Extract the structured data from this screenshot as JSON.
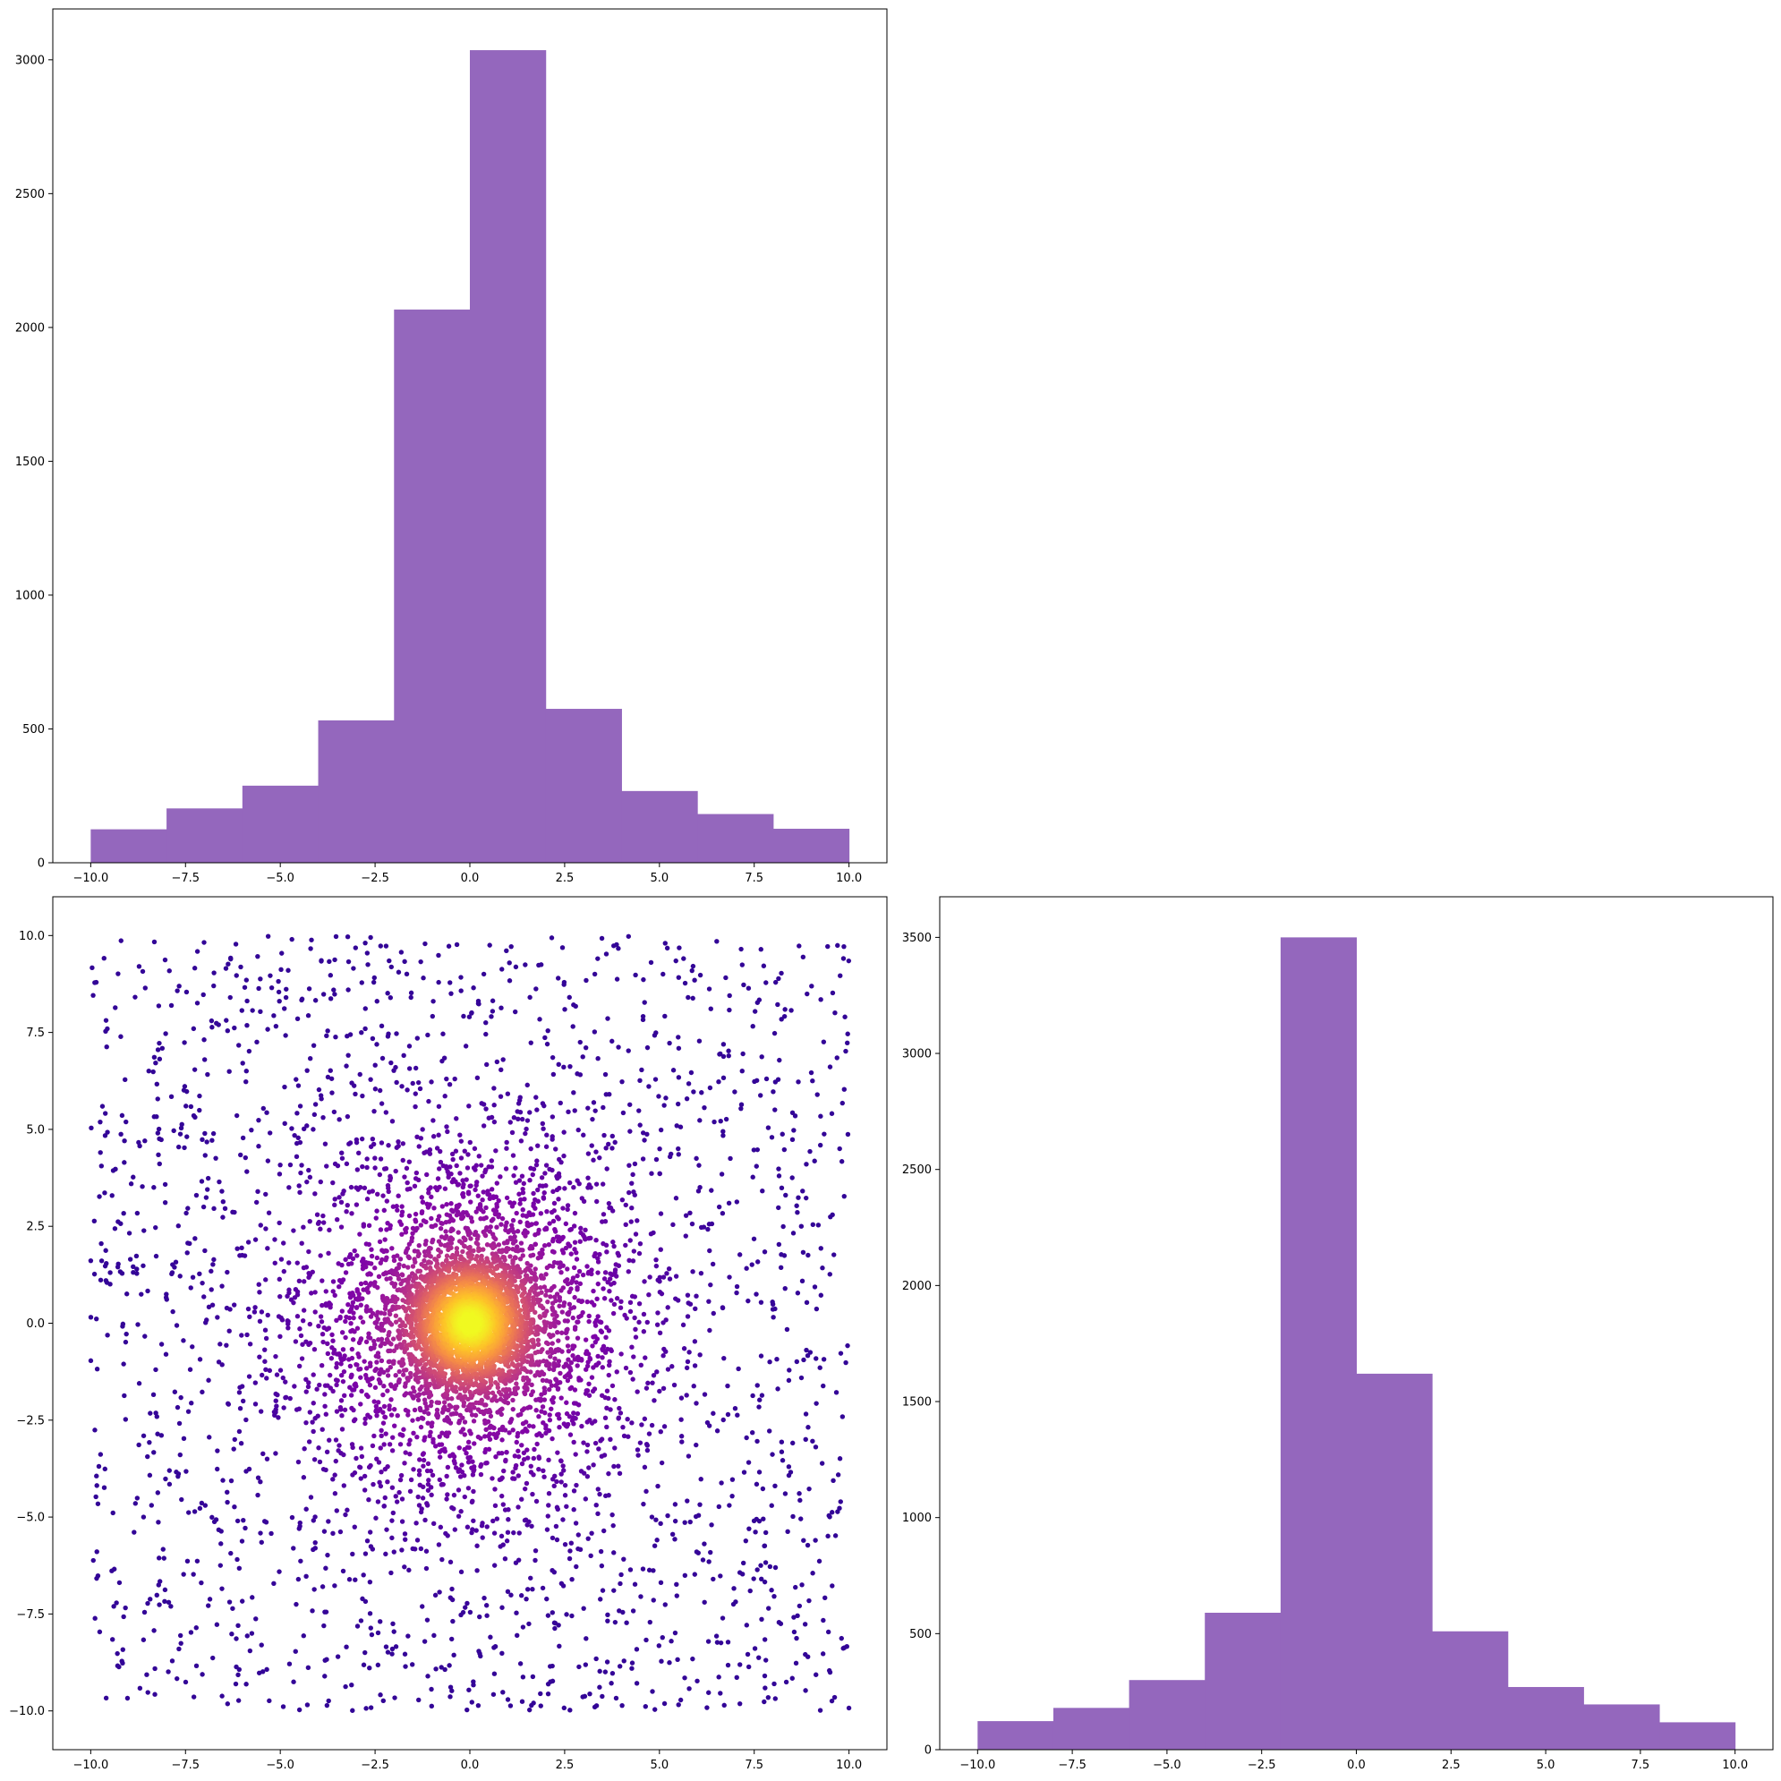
{
  "colors": {
    "bar_fill": "#9467bd",
    "axis": "#000000",
    "scatter_colormap": "plasma"
  },
  "chart_data": [
    {
      "type": "bar",
      "panel": "top-left",
      "title": "",
      "xlabel": "",
      "ylabel": "",
      "xlim": [
        -11.0,
        11.0
      ],
      "ylim": [
        0,
        3190
      ],
      "x_ticks": [
        -10.0,
        -7.5,
        -5.0,
        -2.5,
        0.0,
        2.5,
        5.0,
        7.5,
        10.0
      ],
      "x_tick_labels": [
        "−10.0",
        "−7.5",
        "−5.0",
        "−2.5",
        "0.0",
        "2.5",
        "5.0",
        "7.5",
        "10.0"
      ],
      "y_ticks": [
        0,
        500,
        1000,
        1500,
        2000,
        2500,
        3000
      ],
      "y_tick_labels": [
        "0",
        "500",
        "1000",
        "1500",
        "2000",
        "2500",
        "3000"
      ],
      "bin_edges": [
        -10,
        -8,
        -6,
        -4,
        -2,
        0,
        2,
        4,
        6,
        8,
        10
      ],
      "values": [
        125,
        203,
        288,
        532,
        2067,
        3036,
        575,
        268,
        182,
        127
      ]
    },
    {
      "type": "scatter",
      "panel": "bottom-left",
      "title": "",
      "xlabel": "",
      "ylabel": "",
      "xlim": [
        -11.0,
        11.0
      ],
      "ylim": [
        -11.0,
        11.0
      ],
      "x_ticks": [
        -10.0,
        -7.5,
        -5.0,
        -2.5,
        0.0,
        2.5,
        5.0,
        7.5,
        10.0
      ],
      "x_tick_labels": [
        "−10.0",
        "−7.5",
        "−5.0",
        "−2.5",
        "0.0",
        "2.5",
        "5.0",
        "7.5",
        "10.0"
      ],
      "y_ticks": [
        -10.0,
        -7.5,
        -5.0,
        -2.5,
        0.0,
        2.5,
        5.0,
        7.5,
        10.0
      ],
      "y_tick_labels": [
        "−10.0",
        "−7.5",
        "−5.0",
        "−2.5",
        "0.0",
        "2.5",
        "5.0",
        "7.5",
        "10.0"
      ],
      "point_count": 7000,
      "distribution": {
        "core": {
          "kind": "normal",
          "sigma": 0.8,
          "count": 2500
        },
        "middle": {
          "kind": "normal",
          "sigma": 2.2,
          "count": 2500
        },
        "background": {
          "kind": "uniform",
          "range": [
            -10,
            10
          ],
          "count": 2000
        }
      },
      "color_by": "density",
      "colormap": "plasma",
      "color_range": [
        "#3b0a9c",
        "#f0f921"
      ]
    },
    {
      "type": "bar",
      "panel": "bottom-right",
      "title": "",
      "xlabel": "",
      "ylabel": "",
      "xlim": [
        -11.0,
        11.0
      ],
      "ylim": [
        0,
        3675
      ],
      "x_ticks": [
        -10.0,
        -7.5,
        -5.0,
        -2.5,
        0.0,
        2.5,
        5.0,
        7.5,
        10.0
      ],
      "x_tick_labels": [
        "−10.0",
        "−7.5",
        "−5.0",
        "−2.5",
        "0.0",
        "2.5",
        "5.0",
        "7.5",
        "10.0"
      ],
      "y_ticks": [
        0,
        500,
        1000,
        1500,
        2000,
        2500,
        3000,
        3500
      ],
      "y_tick_labels": [
        "0",
        "500",
        "1000",
        "1500",
        "2000",
        "2500",
        "3000",
        "3500"
      ],
      "bin_edges": [
        -10,
        -8,
        -6,
        -4,
        -2,
        0,
        2,
        4,
        6,
        8,
        10
      ],
      "values": [
        123,
        180,
        300,
        590,
        3500,
        1620,
        510,
        270,
        195,
        118
      ]
    }
  ]
}
